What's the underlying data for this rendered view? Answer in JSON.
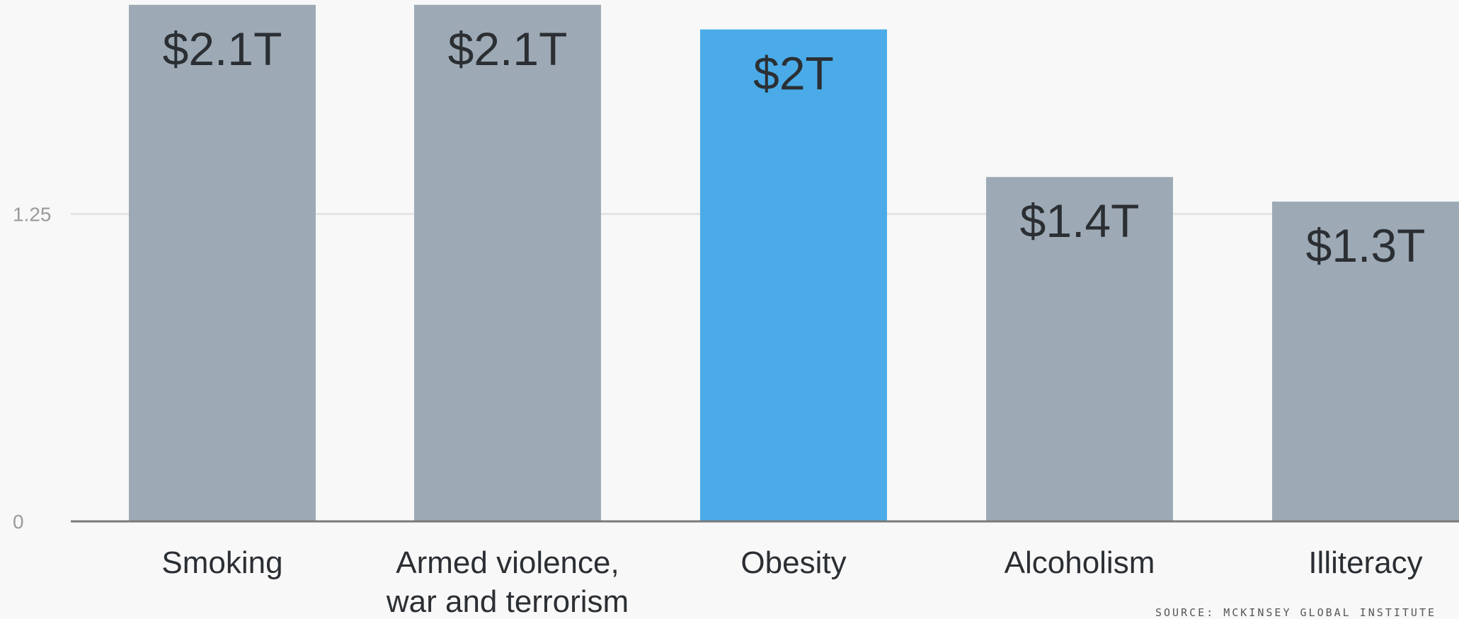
{
  "chart_data": {
    "type": "bar",
    "categories": [
      [
        "Smoking"
      ],
      [
        "Armed violence,",
        "war and terrorism"
      ],
      [
        "Obesity"
      ],
      [
        "Alcoholism"
      ],
      [
        "Illiteracy"
      ]
    ],
    "values": [
      2.1,
      2.1,
      2.0,
      1.4,
      1.3
    ],
    "data_labels": [
      "$2.1T",
      "$2.1T",
      "$2T",
      "$1.4T",
      "$1.3T"
    ],
    "yticks": [
      0,
      1.25
    ],
    "ytick_labels": [
      "0",
      "1.25"
    ],
    "ylim": [
      0,
      2.1
    ],
    "grid": true,
    "highlight_index": 2,
    "colors": {
      "bar": "#9daab6",
      "highlight": "#4aabe8",
      "gridline": "#e4e4e4",
      "axis": "#7a7a7a"
    }
  },
  "source": "SOURCE: MCKINSEY GLOBAL INSTITUTE"
}
